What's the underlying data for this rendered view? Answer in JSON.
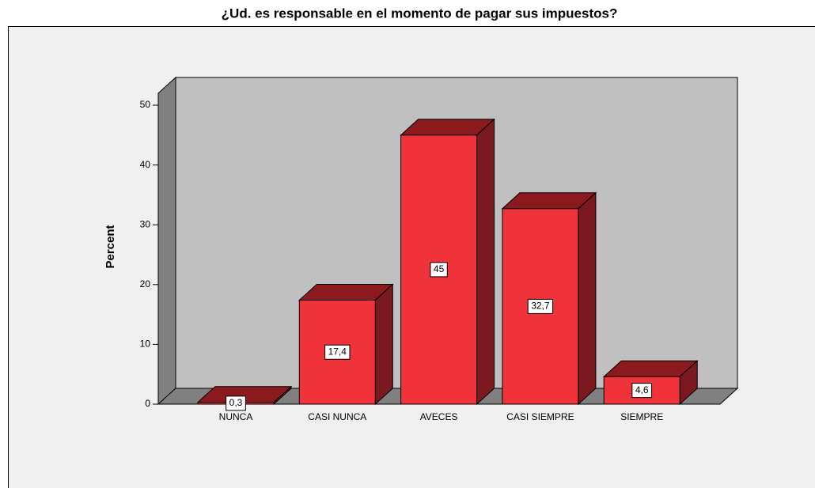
{
  "chart_data": {
    "type": "bar3d",
    "title": "¿Ud. es responsable en el momento de  pagar sus impuestos?",
    "y_label": "Percent",
    "categories": [
      "NUNCA",
      "CASI NUNCA",
      "AVECES",
      "CASI SIEMPRE",
      "SIEMPRE"
    ],
    "values": [
      0.3,
      17.4,
      45,
      32.7,
      4.6
    ],
    "value_labels": [
      "0,3",
      "17,4",
      "45",
      "32,7",
      "4,6"
    ],
    "color": "#f0323b",
    "ylim": [
      0,
      52
    ],
    "yticks": [
      0,
      10,
      20,
      30,
      40,
      50
    ]
  }
}
